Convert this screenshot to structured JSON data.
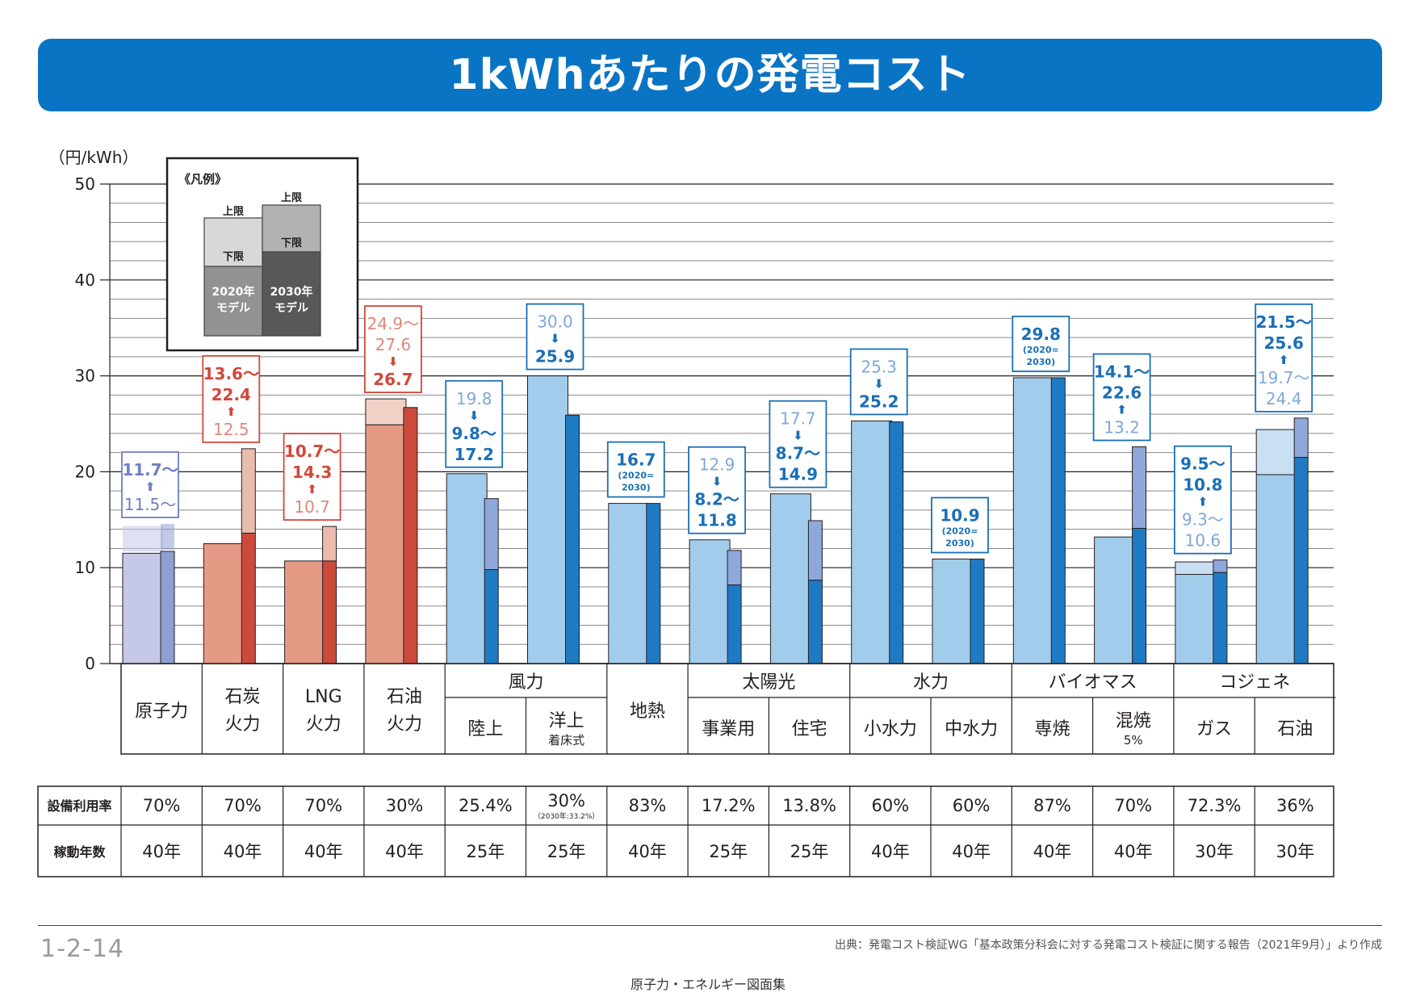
{
  "title": "1kWhあたりの発電コスト",
  "colors": {
    "title_bg": "#0a74c4",
    "nuclear_2020": "#c5c9e7",
    "nuclear_2030": "#8f9fd2",
    "nuclear_label": "#6f7fc3",
    "thermal_2020_low": "#e49a85",
    "thermal_2020_high": "#f1d1c6",
    "thermal_2030_low": "#cc4a3c",
    "thermal_2030_high": "#e9bcae",
    "thermal_label": "#d3473a",
    "thermal_label_light": "#e0867a",
    "renew_2020": "#a2ccec",
    "renew_2020_high": "#c9e0f4",
    "renew_2030_low": "#1e7bc3",
    "renew_2030_high": "#8ea8da",
    "renew_label": "#1a6fb7",
    "renew_label_light": "#7fa8d8"
  },
  "legend": {
    "title": "《凡例》",
    "upper": "上限",
    "lower": "下限",
    "model_2020_line1": "2020年",
    "model_2020_line2": "モデル",
    "model_2030_line1": "2030年",
    "model_2030_line2": "モデル"
  },
  "chart_data": {
    "type": "bar",
    "title": "1kWhあたりの発電コスト",
    "ylabel": "（円/kWh）",
    "ylim": [
      0,
      50
    ],
    "yticks": [
      0,
      10,
      20,
      30,
      40,
      50
    ],
    "grid": true,
    "series_names": [
      "2020年モデル",
      "2030年モデル"
    ],
    "categories": [
      {
        "group": "",
        "name": "原子力",
        "line1": "原子力",
        "line2": "",
        "lf": "70%",
        "lf_note": "",
        "life": "40年",
        "family": "nuclear",
        "y2020": [
          11.5,
          11.5
        ],
        "y2030": [
          11.7,
          11.7
        ],
        "open2020": true,
        "open2030": true,
        "label": [
          {
            "t": "11.7～",
            "c": "dark"
          },
          {
            "t": "⬆",
            "c": "dark"
          },
          {
            "t": "11.5～",
            "c": "light"
          }
        ]
      },
      {
        "group": "",
        "name": "石炭火力",
        "line1": "石炭",
        "line2": "火力",
        "lf": "70%",
        "lf_note": "",
        "life": "40年",
        "family": "thermal",
        "y2020": [
          12.5,
          12.5
        ],
        "y2030": [
          13.6,
          22.4
        ],
        "label": [
          {
            "t": "13.6～",
            "c": "dark"
          },
          {
            "t": "22.4",
            "c": "dark"
          },
          {
            "t": "⬆",
            "c": "dark"
          },
          {
            "t": "12.5",
            "c": "light"
          }
        ]
      },
      {
        "group": "",
        "name": "LNG火力",
        "line1": "LNG",
        "line2": "火力",
        "lf": "70%",
        "lf_note": "",
        "life": "40年",
        "family": "thermal",
        "y2020": [
          10.7,
          10.7
        ],
        "y2030": [
          10.7,
          14.3
        ],
        "label": [
          {
            "t": "10.7～",
            "c": "dark"
          },
          {
            "t": "14.3",
            "c": "dark"
          },
          {
            "t": "⬆",
            "c": "dark"
          },
          {
            "t": "10.7",
            "c": "light"
          }
        ]
      },
      {
        "group": "",
        "name": "石油火力",
        "line1": "石油",
        "line2": "火力",
        "lf": "30%",
        "lf_note": "",
        "life": "40年",
        "family": "thermal",
        "y2020": [
          24.9,
          27.6
        ],
        "y2030": [
          26.7,
          26.7
        ],
        "label": [
          {
            "t": "24.9～",
            "c": "light"
          },
          {
            "t": "27.6",
            "c": "light"
          },
          {
            "t": "⬇",
            "c": "dark"
          },
          {
            "t": "26.7",
            "c": "dark"
          }
        ]
      },
      {
        "group": "風力",
        "name": "陸上",
        "line1": "陸上",
        "line2": "",
        "lf": "25.4%",
        "lf_note": "",
        "life": "25年",
        "family": "renew",
        "y2020": [
          19.8,
          19.8
        ],
        "y2030": [
          9.8,
          17.2
        ],
        "label": [
          {
            "t": "19.8",
            "c": "light"
          },
          {
            "t": "⬇",
            "c": "dark"
          },
          {
            "t": "9.8～",
            "c": "dark"
          },
          {
            "t": "17.2",
            "c": "dark"
          }
        ]
      },
      {
        "group": "風力",
        "name": "洋上着床式",
        "line1": "洋上",
        "line2": "着床式",
        "lf": "30%",
        "lf_note": "（2030年:33.2%）",
        "life": "25年",
        "family": "renew",
        "y2020": [
          30.0,
          30.0
        ],
        "y2030": [
          25.9,
          25.9
        ],
        "label": [
          {
            "t": "30.0",
            "c": "light"
          },
          {
            "t": "⬇",
            "c": "dark"
          },
          {
            "t": "25.9",
            "c": "dark"
          }
        ]
      },
      {
        "group": "",
        "name": "地熱",
        "line1": "地熱",
        "line2": "",
        "lf": "83%",
        "lf_note": "",
        "life": "40年",
        "family": "renew",
        "y2020": [
          16.7,
          16.7
        ],
        "y2030": [
          16.7,
          16.7
        ],
        "label": [
          {
            "t": "16.7",
            "c": "dark"
          },
          {
            "t": "(2020=",
            "c": "small"
          },
          {
            "t": "2030)",
            "c": "small"
          }
        ]
      },
      {
        "group": "太陽光",
        "name": "事業用",
        "line1": "事業用",
        "line2": "",
        "lf": "17.2%",
        "lf_note": "",
        "life": "25年",
        "family": "renew",
        "y2020": [
          12.9,
          12.9
        ],
        "y2030": [
          8.2,
          11.8
        ],
        "label": [
          {
            "t": "12.9",
            "c": "light"
          },
          {
            "t": "⬇",
            "c": "dark"
          },
          {
            "t": "8.2～",
            "c": "dark"
          },
          {
            "t": "11.8",
            "c": "dark"
          }
        ]
      },
      {
        "group": "太陽光",
        "name": "住宅",
        "line1": "住宅",
        "line2": "",
        "lf": "13.8%",
        "lf_note": "",
        "life": "25年",
        "family": "renew",
        "y2020": [
          17.7,
          17.7
        ],
        "y2030": [
          8.7,
          14.9
        ],
        "label": [
          {
            "t": "17.7",
            "c": "light"
          },
          {
            "t": "⬇",
            "c": "dark"
          },
          {
            "t": "8.7～",
            "c": "dark"
          },
          {
            "t": "14.9",
            "c": "dark"
          }
        ]
      },
      {
        "group": "水力",
        "name": "小水力",
        "line1": "小水力",
        "line2": "",
        "lf": "60%",
        "lf_note": "",
        "life": "40年",
        "family": "renew",
        "y2020": [
          25.3,
          25.3
        ],
        "y2030": [
          25.2,
          25.2
        ],
        "label": [
          {
            "t": "25.3",
            "c": "light"
          },
          {
            "t": "⬇",
            "c": "dark"
          },
          {
            "t": "25.2",
            "c": "dark"
          }
        ]
      },
      {
        "group": "水力",
        "name": "中水力",
        "line1": "中水力",
        "line2": "",
        "lf": "60%",
        "lf_note": "",
        "life": "40年",
        "family": "renew",
        "y2020": [
          10.9,
          10.9
        ],
        "y2030": [
          10.9,
          10.9
        ],
        "label": [
          {
            "t": "10.9",
            "c": "dark"
          },
          {
            "t": "(2020=",
            "c": "small"
          },
          {
            "t": "2030)",
            "c": "small"
          }
        ]
      },
      {
        "group": "バイオマス",
        "name": "専焼",
        "line1": "専焼",
        "line2": "",
        "lf": "87%",
        "lf_note": "",
        "life": "40年",
        "family": "renew",
        "y2020": [
          29.8,
          29.8
        ],
        "y2030": [
          29.8,
          29.8
        ],
        "label": [
          {
            "t": "29.8",
            "c": "dark"
          },
          {
            "t": "(2020=",
            "c": "small"
          },
          {
            "t": "2030)",
            "c": "small"
          }
        ]
      },
      {
        "group": "バイオマス",
        "name": "混焼5%",
        "line1": "混焼",
        "line2": "5%",
        "lf": "70%",
        "lf_note": "",
        "life": "40年",
        "family": "renew",
        "y2020": [
          13.2,
          13.2
        ],
        "y2030": [
          14.1,
          22.6
        ],
        "label": [
          {
            "t": "14.1～",
            "c": "dark"
          },
          {
            "t": "22.6",
            "c": "dark"
          },
          {
            "t": "⬆",
            "c": "dark"
          },
          {
            "t": "13.2",
            "c": "light"
          }
        ]
      },
      {
        "group": "コジェネ",
        "name": "ガス",
        "line1": "ガス",
        "line2": "",
        "lf": "72.3%",
        "lf_note": "",
        "life": "30年",
        "family": "renew",
        "y2020": [
          9.3,
          10.6
        ],
        "y2030": [
          9.5,
          10.8
        ],
        "label": [
          {
            "t": "9.5～",
            "c": "dark"
          },
          {
            "t": "10.8",
            "c": "dark"
          },
          {
            "t": "⬆",
            "c": "dark"
          },
          {
            "t": "9.3～",
            "c": "light"
          },
          {
            "t": "10.6",
            "c": "light"
          }
        ]
      },
      {
        "group": "コジェネ",
        "name": "石油",
        "line1": "石油",
        "line2": "",
        "lf": "36%",
        "lf_note": "",
        "life": "30年",
        "family": "renew",
        "y2020": [
          19.7,
          24.4
        ],
        "y2030": [
          21.5,
          25.6
        ],
        "label": [
          {
            "t": "21.5～",
            "c": "dark"
          },
          {
            "t": "25.6",
            "c": "dark"
          },
          {
            "t": "⬆",
            "c": "dark"
          },
          {
            "t": "19.7～",
            "c": "light"
          },
          {
            "t": "24.4",
            "c": "light"
          }
        ]
      }
    ],
    "groups": [
      "風力",
      "太陽光",
      "水力",
      "バイオマス",
      "コジェネ"
    ]
  },
  "table": {
    "row1_label": "設備利用率",
    "row2_label": "稼動年数"
  },
  "footer": {
    "page_number": "1-2-14",
    "source": "出典：発電コスト検証WG「基本政策分科会に対する発電コスト検証に関する報告（2021年9月）」より作成",
    "book_title": "原子力・エネルギー図面集"
  }
}
